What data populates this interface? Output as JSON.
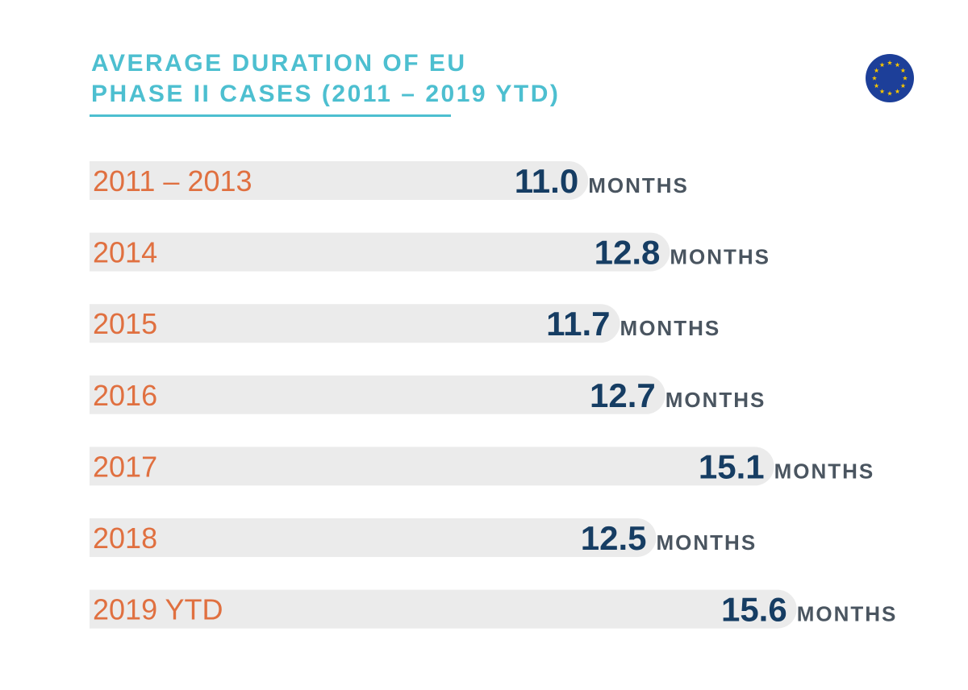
{
  "chart_data": {
    "type": "bar",
    "title_line1": "AVERAGE DURATION OF EU",
    "title_line2": "PHASE II CASES (2011 – 2019 YTD)",
    "unit": "MONTHS",
    "categories": [
      "2011 – 2013",
      "2014",
      "2015",
      "2016",
      "2017",
      "2018",
      "2019 YTD"
    ],
    "values": [
      11.0,
      12.8,
      11.7,
      12.7,
      15.1,
      12.5,
      15.6
    ],
    "value_labels": [
      "11.0",
      "12.8",
      "11.7",
      "12.7",
      "15.1",
      "12.5",
      "15.6"
    ],
    "orientation": "horizontal",
    "colors": {
      "title": "#4dbfd0",
      "bar": "#ebebeb",
      "category_label": "#e07040",
      "value": "#163d63",
      "unit": "#4a5560",
      "flag_blue": "#1d3f99",
      "flag_stars": "#f5c400"
    }
  },
  "icons": {
    "flag": "eu-flag-icon"
  }
}
